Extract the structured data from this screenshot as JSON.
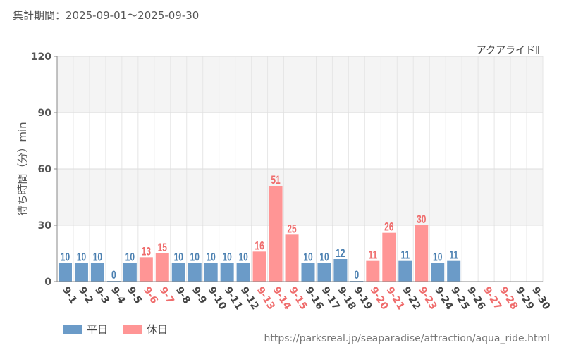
{
  "header": {
    "period": "集計期間：2025-09-01〜2025-09-30"
  },
  "legend": {
    "weekday_label": "平日",
    "holiday_label": "休日"
  },
  "source": {
    "url": "https://parksreal.jp/seaparadise/attraction/aqua_ride.html"
  },
  "colors": {
    "weekday": "#6b9bc8",
    "holiday": "#ff9595",
    "weekday_text": "#4a7fb0",
    "holiday_text": "#ef6c6c",
    "axis_text": "#555555"
  },
  "chart_data": {
    "type": "bar",
    "title": "アクアライドⅡ",
    "xlabel": "",
    "ylabel": "待ち時間（分）min",
    "ylim": [
      0,
      120
    ],
    "yticks": [
      0,
      30,
      60,
      90,
      120
    ],
    "grid": true,
    "legend_position": "bottom-left",
    "categories": [
      "9-1",
      "9-2",
      "9-3",
      "9-4",
      "9-5",
      "9-6",
      "9-7",
      "9-8",
      "9-9",
      "9-10",
      "9-11",
      "9-12",
      "9-13",
      "9-14",
      "9-15",
      "9-16",
      "9-17",
      "9-18",
      "9-19",
      "9-20",
      "9-21",
      "9-22",
      "9-23",
      "9-24",
      "9-25",
      "9-26",
      "9-27",
      "9-28",
      "9-29",
      "9-30"
    ],
    "day_type": [
      "weekday",
      "weekday",
      "weekday",
      "weekday",
      "weekday",
      "holiday",
      "holiday",
      "weekday",
      "weekday",
      "weekday",
      "weekday",
      "weekday",
      "holiday",
      "holiday",
      "holiday",
      "weekday",
      "weekday",
      "weekday",
      "weekday",
      "holiday",
      "holiday",
      "weekday",
      "holiday",
      "weekday",
      "weekday",
      "weekday",
      "holiday",
      "holiday",
      "weekday",
      "weekday"
    ],
    "values": [
      10,
      10,
      10,
      0,
      10,
      13,
      15,
      10,
      10,
      10,
      10,
      10,
      16,
      51,
      25,
      10,
      10,
      12,
      0,
      11,
      26,
      11,
      30,
      10,
      11,
      null,
      null,
      null,
      null,
      null
    ]
  }
}
